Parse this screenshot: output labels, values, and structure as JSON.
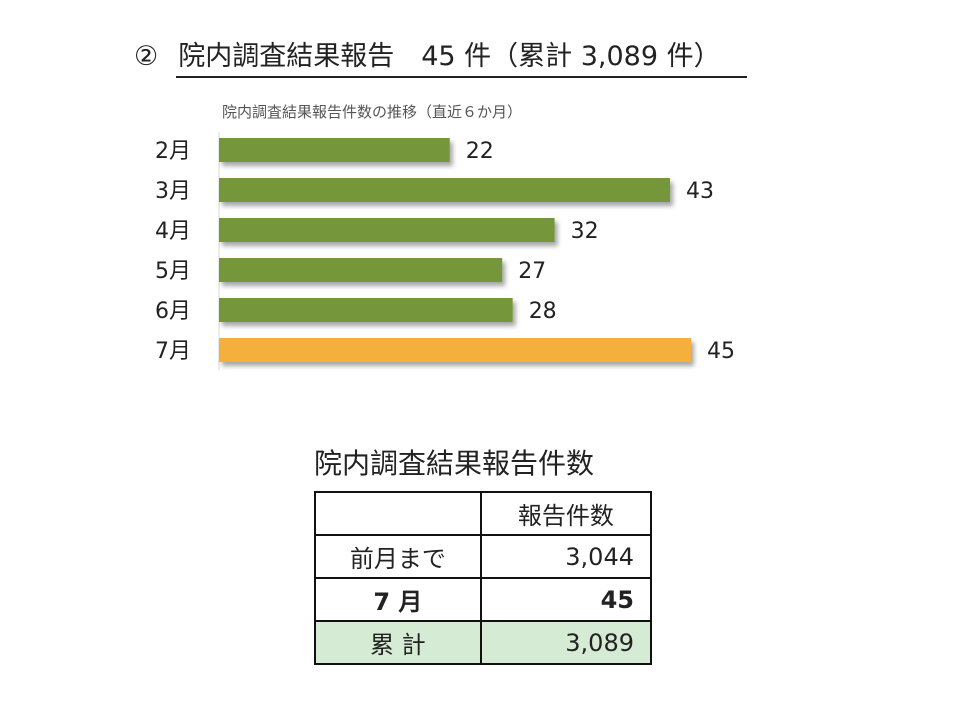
{
  "heading": {
    "number": "②",
    "title": "院内調査結果報告　45 件（累計 3,089 件）"
  },
  "chart_data": {
    "type": "bar",
    "orientation": "horizontal",
    "title": "院内調査結果報告件数の推移（直近６か月）",
    "categories": [
      "2月",
      "3月",
      "4月",
      "5月",
      "6月",
      "7月"
    ],
    "values": [
      22,
      43,
      32,
      27,
      28,
      45
    ],
    "value_labels": [
      "22",
      "43",
      "32",
      "27",
      "28",
      "45"
    ],
    "colors": {
      "default": "#76963a",
      "highlight": "#f5b03a"
    },
    "highlight_category": "7月",
    "xlim": [
      0,
      45
    ],
    "grid": false,
    "legend": "none"
  },
  "table": {
    "title": "院内調査結果報告件数",
    "header": [
      "",
      "報告件数"
    ],
    "rows": [
      {
        "label": "前月まで",
        "value": "3,044"
      },
      {
        "label": "7 月",
        "value": "45"
      },
      {
        "label": "累 計",
        "value": "3,089"
      }
    ]
  }
}
